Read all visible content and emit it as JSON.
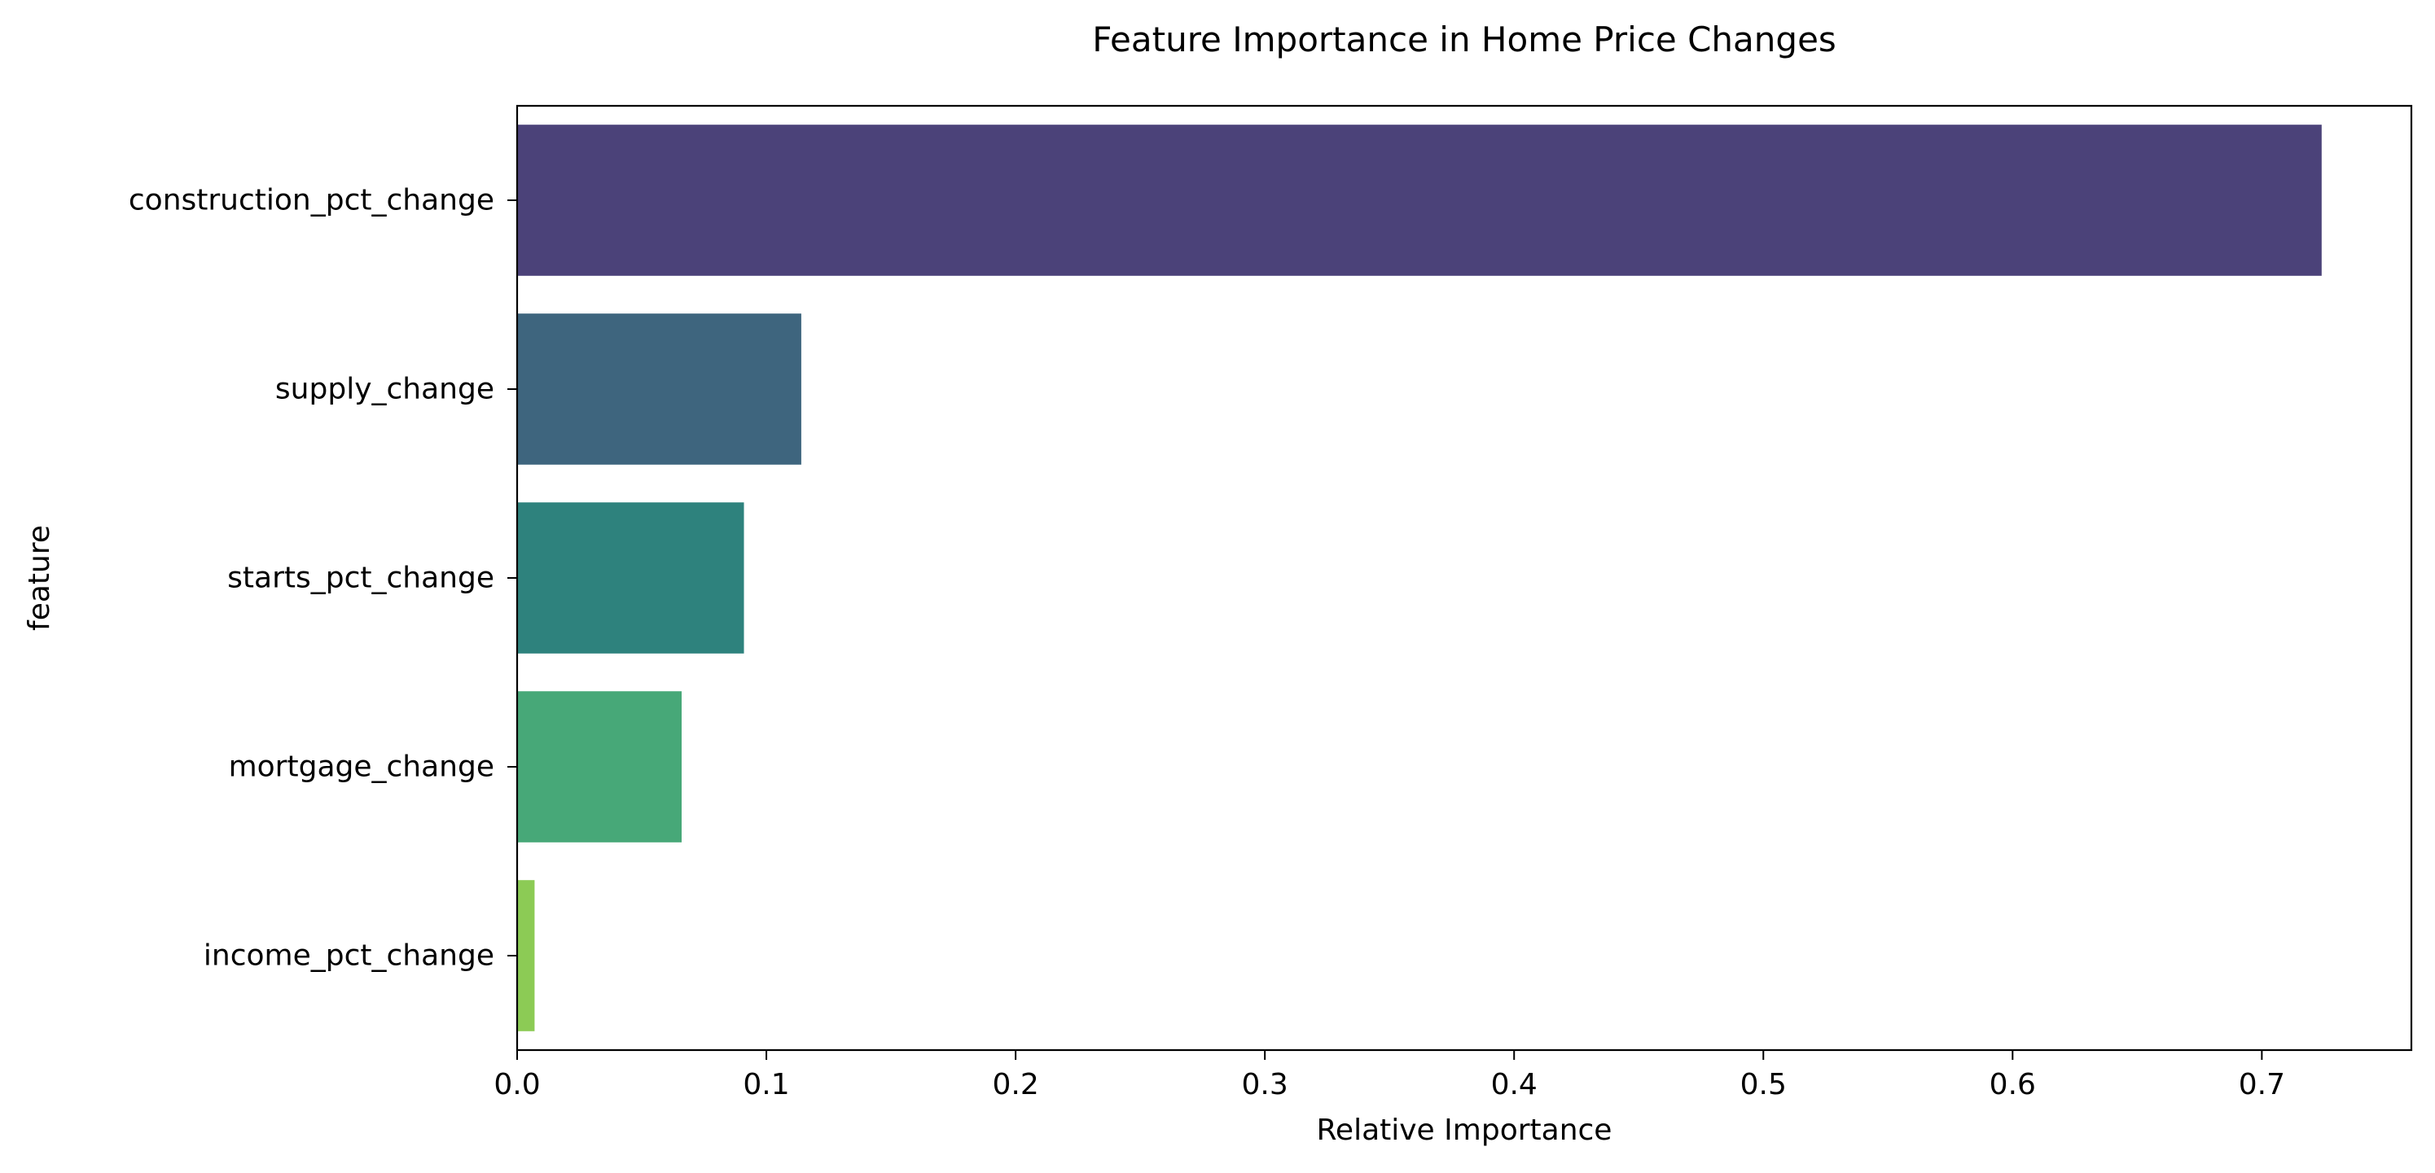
{
  "chart_data": {
    "type": "bar",
    "orientation": "horizontal",
    "title": "Feature Importance in Home Price Changes",
    "xlabel": "Relative Importance",
    "ylabel": "feature",
    "categories": [
      "construction_pct_change",
      "supply_change",
      "starts_pct_change",
      "mortgage_change",
      "income_pct_change"
    ],
    "values": [
      0.724,
      0.114,
      0.091,
      0.066,
      0.007
    ],
    "colors": [
      "#4b4279",
      "#3e657e",
      "#2e827d",
      "#47a878",
      "#8ccb55"
    ],
    "xlim": [
      0,
      0.76
    ],
    "xticks": [
      0.0,
      0.1,
      0.2,
      0.3,
      0.4,
      0.5,
      0.6,
      0.7
    ],
    "xtick_labels": [
      "0.0",
      "0.1",
      "0.2",
      "0.3",
      "0.4",
      "0.5",
      "0.6",
      "0.7"
    ],
    "grid": false,
    "legend": "none"
  }
}
